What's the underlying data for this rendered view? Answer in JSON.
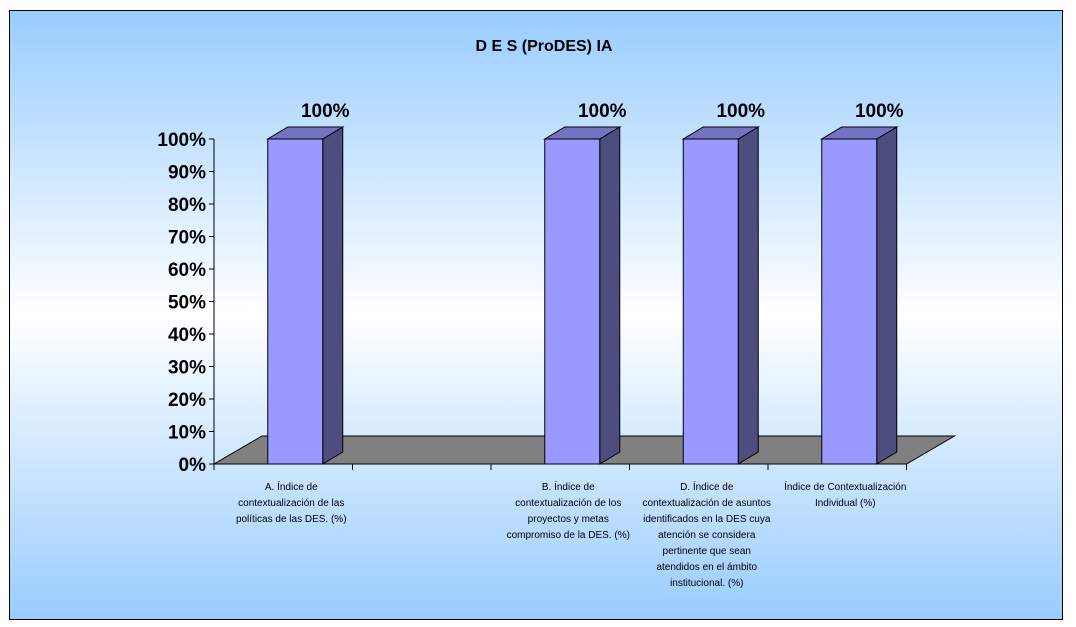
{
  "chart_data": {
    "type": "bar",
    "title": "D E S (ProDES) IA",
    "categories": [
      "A. Índice de contextualización de las políticas de las DES. (%)",
      "",
      "B. Índice de contextualización de los proyectos y metas compromiso de la DES. (%)",
      "D. Índice de contextualización de asuntos identificados en la DES cuya atención se considera pertinente que sean atendidos en el ámbito institucional. (%)",
      "Índice de Contextualización Individual (%)"
    ],
    "category_lines": [
      [
        "A. Índice de",
        "contextualización de las",
        "políticas de las DES. (%)"
      ],
      [],
      [
        "B. Índice de",
        "contextualización de los",
        "proyectos y metas",
        "compromiso de la DES. (%)"
      ],
      [
        "D. Índice de",
        "contextualización de asuntos",
        "identificados en la DES cuya",
        "atención se considera",
        "pertinente que sean",
        "atendidos en el ámbito",
        "institucional. (%)"
      ],
      [
        "Índice de Contextualización",
        "Individual (%)"
      ]
    ],
    "values": [
      100,
      null,
      100,
      100,
      100
    ],
    "data_labels": [
      "100%",
      "",
      "100%",
      "100%",
      "100%"
    ],
    "yticks": [
      "0%",
      "10%",
      "20%",
      "30%",
      "40%",
      "50%",
      "60%",
      "70%",
      "80%",
      "90%",
      "100%"
    ],
    "ylim": [
      0,
      100
    ],
    "xlabel": "",
    "ylabel": "",
    "legend": "none",
    "grid": false,
    "colors": {
      "bar_front": "#9999ff",
      "bar_side": "#4d4d80",
      "bar_top": "#7373bf",
      "floor": "#808080",
      "background_top": "#ffffff",
      "background_bottom": "#99ccff"
    }
  }
}
